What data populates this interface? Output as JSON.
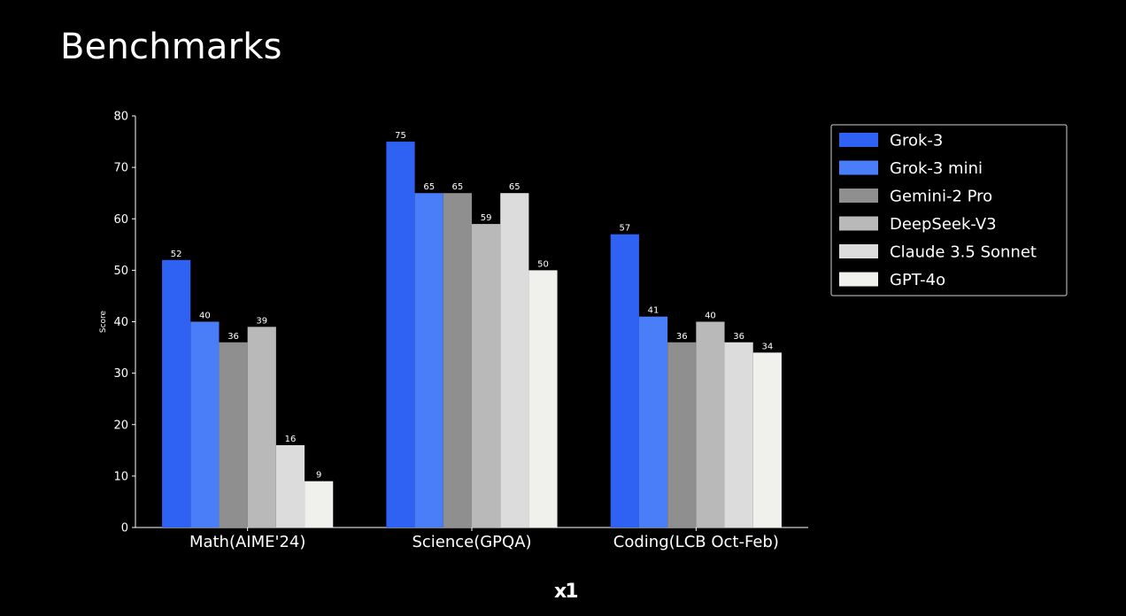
{
  "title": "Benchmarks",
  "logo_text": "x1",
  "chart_data": {
    "type": "bar",
    "categories": [
      "Math(AIME'24)",
      "Science(GPQA)",
      "Coding(LCB Oct-Feb)"
    ],
    "series": [
      {
        "name": "Grok-3",
        "values": [
          52,
          75,
          57
        ],
        "color": "#2f62f2"
      },
      {
        "name": "Grok-3 mini",
        "values": [
          40,
          65,
          41
        ],
        "color": "#4a7df8"
      },
      {
        "name": "Gemini-2 Pro",
        "values": [
          36,
          65,
          36
        ],
        "color": "#8f8f8f"
      },
      {
        "name": "DeepSeek-V3",
        "values": [
          39,
          59,
          40
        ],
        "color": "#b9b9b9"
      },
      {
        "name": "Claude 3.5 Sonnet",
        "values": [
          16,
          65,
          36
        ],
        "color": "#dcdcdc"
      },
      {
        "name": "GPT-4o",
        "values": [
          9,
          50,
          34
        ],
        "color": "#f0f0ed"
      }
    ],
    "xlabel": "",
    "ylabel": "Score",
    "ylim": [
      0,
      80
    ],
    "yticks": [
      0,
      10,
      20,
      30,
      40,
      50,
      60,
      70,
      80
    ],
    "legend": "top-right",
    "grid": false
  }
}
